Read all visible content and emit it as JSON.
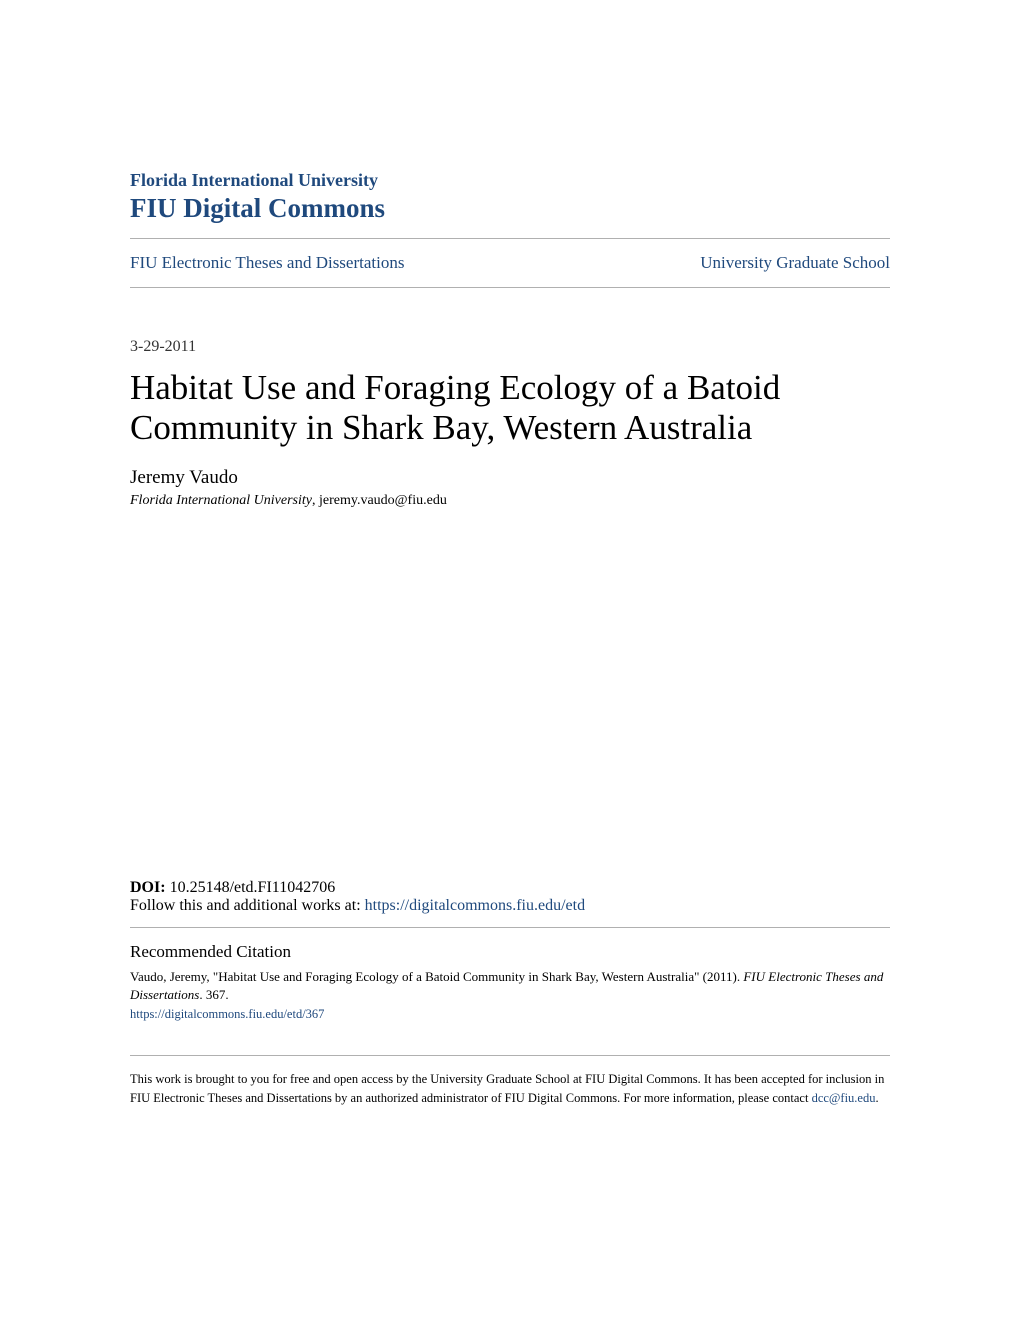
{
  "header": {
    "institution": "Florida International University",
    "repository": "FIU Digital Commons"
  },
  "nav": {
    "left": "FIU Electronic Theses and Dissertations",
    "right": "University Graduate School"
  },
  "date": "3-29-2011",
  "title": "Habitat Use and Foraging Ecology of a Batoid Community in Shark Bay, Western Australia",
  "author": {
    "name": "Jeremy Vaudo",
    "affiliation": "Florida International University",
    "email": ", jeremy.vaudo@fiu.edu"
  },
  "doi": {
    "label": "DOI: ",
    "value": "10.25148/etd.FI11042706",
    "follow_text": "Follow this and additional works at: ",
    "follow_url": "https://digitalcommons.fiu.edu/etd"
  },
  "citation": {
    "heading": "Recommended Citation",
    "text_part1": "Vaudo, Jeremy, \"Habitat Use and Foraging Ecology of a Batoid Community in Shark Bay, Western Australia\" (2011). ",
    "text_italic": "FIU Electronic Theses and Dissertations",
    "text_part2": ". 367.",
    "url": "https://digitalcommons.fiu.edu/etd/367"
  },
  "footer": {
    "text_part1": "This work is brought to you for free and open access by the University Graduate School at FIU Digital Commons. It has been accepted for inclusion in FIU Electronic Theses and Dissertations by an authorized administrator of FIU Digital Commons. For more information, please contact ",
    "link": "dcc@fiu.edu",
    "text_part2": "."
  },
  "colors": {
    "link_color": "#1f497d",
    "text_color": "#000000",
    "divider_color": "#b0b0b0",
    "background": "#ffffff"
  }
}
